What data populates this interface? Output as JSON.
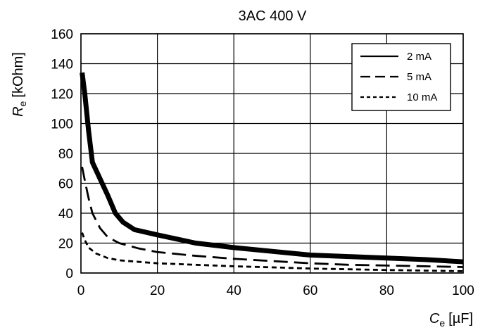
{
  "chart_data": {
    "type": "line",
    "title": "3AC 400 V",
    "ylabel": {
      "symbol": "R",
      "subscript": "e",
      "unit": "[kOhm]"
    },
    "xlabel": {
      "symbol": "C",
      "subscript": "e",
      "unit": "[µF]"
    },
    "xlim": [
      0,
      100
    ],
    "ylim": [
      0,
      160
    ],
    "x_ticks": [
      "0",
      "20",
      "40",
      "60",
      "80",
      "100"
    ],
    "y_ticks": [
      "0",
      "20",
      "40",
      "60",
      "80",
      "100",
      "120",
      "140",
      "160"
    ],
    "grid": true,
    "legend_position": "top-right",
    "series": [
      {
        "name": "2 mA",
        "line_style": "solid-thick",
        "points": [
          [
            0.3,
            134
          ],
          [
            1,
            120
          ],
          [
            2,
            95
          ],
          [
            3,
            74
          ],
          [
            5,
            63
          ],
          [
            7,
            52
          ],
          [
            9,
            40
          ],
          [
            11,
            34
          ],
          [
            14,
            29
          ],
          [
            20,
            25.5
          ],
          [
            30,
            20
          ],
          [
            40,
            17
          ],
          [
            50,
            14.5
          ],
          [
            60,
            12
          ],
          [
            70,
            11
          ],
          [
            80,
            10
          ],
          [
            90,
            9
          ],
          [
            100,
            7.5
          ]
        ]
      },
      {
        "name": "5 mA",
        "line_style": "long-dash",
        "points": [
          [
            0.3,
            71
          ],
          [
            1,
            62
          ],
          [
            2,
            50
          ],
          [
            3,
            40
          ],
          [
            5,
            30
          ],
          [
            7,
            24
          ],
          [
            10,
            20
          ],
          [
            15,
            16.5
          ],
          [
            20,
            14
          ],
          [
            30,
            11.5
          ],
          [
            40,
            9.5
          ],
          [
            50,
            8
          ],
          [
            60,
            6.5
          ],
          [
            70,
            5.5
          ],
          [
            80,
            5
          ],
          [
            90,
            4.5
          ],
          [
            100,
            4
          ]
        ]
      },
      {
        "name": "10 mA",
        "line_style": "short-dash",
        "points": [
          [
            0.3,
            27
          ],
          [
            1,
            22
          ],
          [
            2,
            17
          ],
          [
            4,
            13
          ],
          [
            7,
            10
          ],
          [
            10,
            8.5
          ],
          [
            15,
            7.5
          ],
          [
            20,
            6.5
          ],
          [
            30,
            5.5
          ],
          [
            40,
            4.5
          ],
          [
            50,
            3.8
          ],
          [
            60,
            3
          ],
          [
            70,
            2.5
          ],
          [
            80,
            2
          ],
          [
            90,
            1.6
          ],
          [
            100,
            1.2
          ]
        ]
      }
    ]
  }
}
